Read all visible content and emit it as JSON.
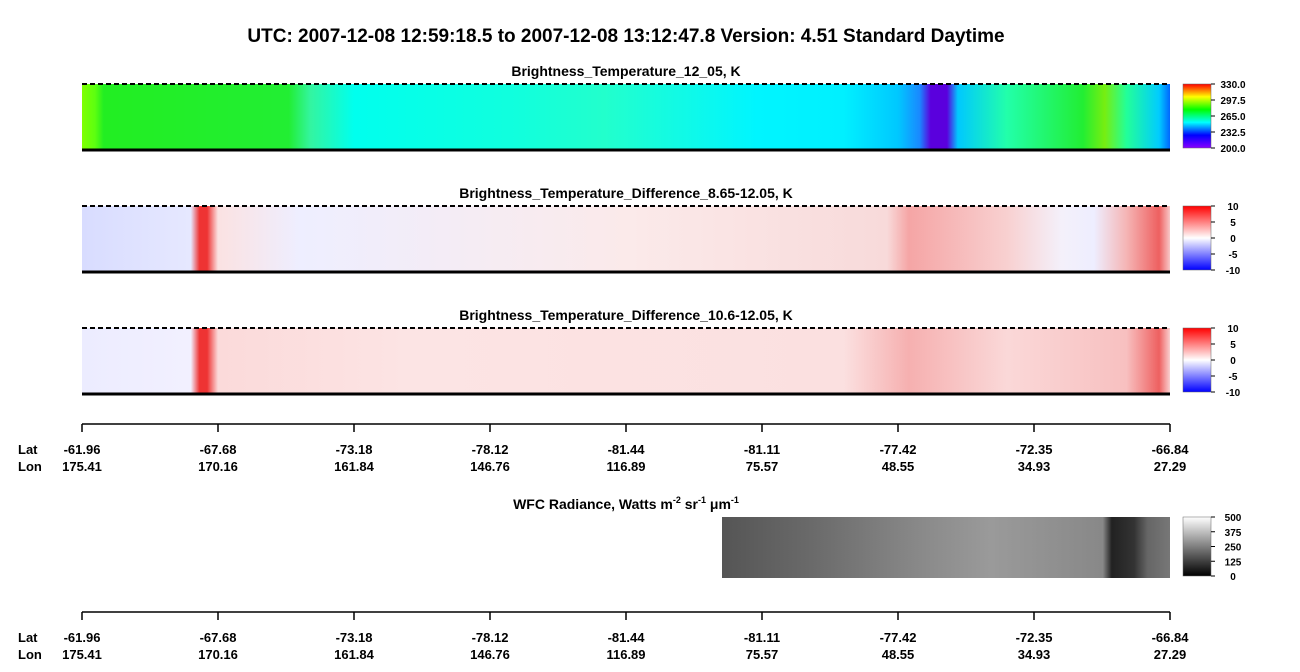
{
  "title": "UTC:  2007-12-08   12:59:18.5  to  2007-12-08   13:12:47.8    Version: 4.51  Standard Daytime",
  "panels": [
    {
      "title": "Brightness_Temperature_12_05, K",
      "colorbar": {
        "ticks": [
          {
            "value": 330,
            "label": "330.0"
          },
          {
            "value": 297.5,
            "label": "297.5"
          },
          {
            "value": 265,
            "label": "265.0"
          },
          {
            "value": 232.5,
            "label": "232.5"
          },
          {
            "value": 200,
            "label": "200.0"
          }
        ]
      }
    },
    {
      "title": "Brightness_Temperature_Difference_8.65-12.05, K",
      "colorbar": {
        "ticks": [
          10,
          5,
          0,
          -5,
          -10
        ]
      }
    },
    {
      "title": "Brightness_Temperature_Difference_10.6-12.05, K",
      "colorbar": {
        "ticks": [
          10,
          5,
          0,
          -5,
          -10
        ]
      }
    },
    {
      "title_parts": [
        "WFC Radiance, Watts m",
        "-2",
        " sr",
        "-1",
        " μm",
        "-1"
      ],
      "colorbar": {
        "ticks": [
          500,
          375,
          250,
          125,
          0
        ]
      }
    }
  ],
  "axes": [
    {
      "lat_label": "Lat",
      "lon_label": "Lon",
      "lat": [
        -61.96,
        -67.68,
        -73.18,
        -78.12,
        -81.44,
        -81.11,
        -77.42,
        -72.35,
        -66.84
      ],
      "lon": [
        175.41,
        170.16,
        161.84,
        146.76,
        116.89,
        75.57,
        48.55,
        34.93,
        27.29
      ]
    },
    {
      "lat_label": "Lat",
      "lon_label": "Lon",
      "lat": [
        -61.96,
        -67.68,
        -73.18,
        -78.12,
        -81.44,
        -81.11,
        -77.42,
        -72.35,
        -66.84
      ],
      "lon": [
        175.41,
        170.16,
        161.84,
        146.76,
        116.89,
        75.57,
        48.55,
        34.93,
        27.29
      ]
    }
  ]
}
